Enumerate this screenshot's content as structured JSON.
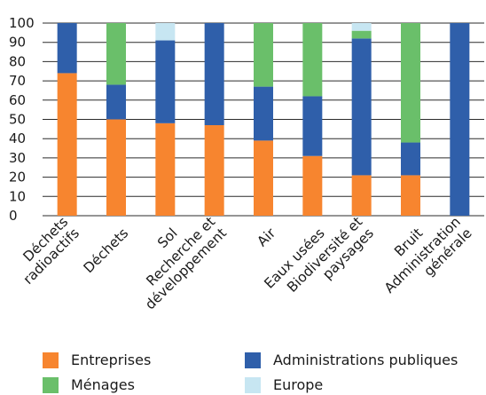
{
  "chart_data": {
    "type": "bar",
    "stacked": true,
    "categories": [
      [
        "Déchets",
        "radioactifs"
      ],
      [
        "Déchets"
      ],
      [
        "Sol"
      ],
      [
        "Recherche et",
        "développement"
      ],
      [
        "Air"
      ],
      [
        "Eaux usées"
      ],
      [
        "Biodiversité et",
        "paysages"
      ],
      [
        "Bruit"
      ],
      [
        "Administration",
        "générale"
      ]
    ],
    "series": [
      {
        "name": "Entreprises",
        "color": "#f7852f",
        "values": [
          74,
          50,
          48,
          47,
          39,
          31,
          21,
          21,
          0
        ]
      },
      {
        "name": "Administrations publiques",
        "color": "#2f5faa",
        "values": [
          26,
          18,
          43,
          53,
          28,
          31,
          71,
          17,
          100
        ]
      },
      {
        "name": "Ménages",
        "color": "#6abf6a",
        "values": [
          0,
          32,
          0,
          0,
          33,
          38,
          4,
          62,
          0
        ]
      },
      {
        "name": "Europe",
        "color": "#c7e6f2",
        "values": [
          0,
          0,
          9,
          0,
          0,
          0,
          4,
          0,
          0
        ]
      }
    ],
    "ylim": [
      0,
      100
    ],
    "yticks": [
      "0",
      "10",
      "20",
      "30",
      "40",
      "50",
      "60",
      "70",
      "80",
      "90",
      "100"
    ],
    "grid": true,
    "legend_placement": "bottom"
  },
  "legend_order": [
    0,
    1,
    2,
    3
  ]
}
